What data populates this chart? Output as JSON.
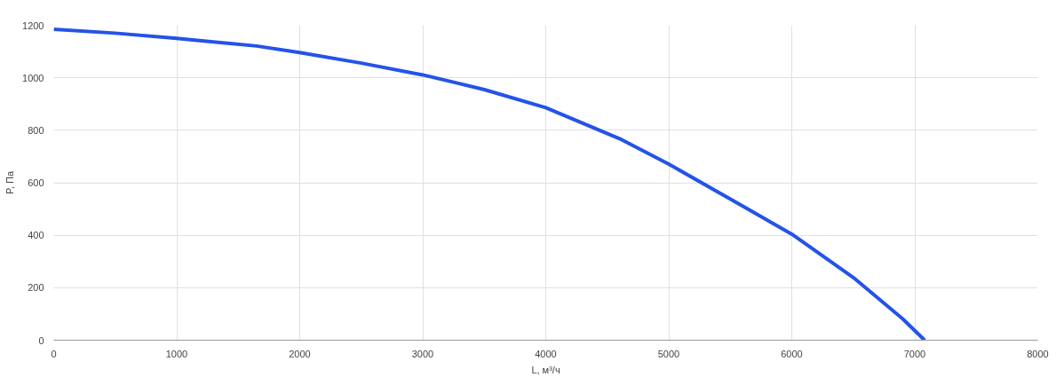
{
  "chart_data": {
    "type": "line",
    "xlabel": "L, м³/ч",
    "ylabel": "P, Па",
    "x": [
      0,
      500,
      1000,
      1650,
      2000,
      2500,
      3000,
      3500,
      4000,
      4600,
      5000,
      5600,
      6000,
      6500,
      6900,
      7080
    ],
    "series": [
      {
        "color": "#2453e8",
        "values": [
          1185,
          1170,
          1150,
          1121,
          1096,
          1056,
          1011,
          955,
          886,
          768,
          671,
          511,
          404,
          239,
          82,
          0
        ]
      }
    ],
    "xlim": [
      0,
      8000
    ],
    "xticks": [
      0,
      1000,
      2000,
      3000,
      4000,
      5000,
      6000,
      7000,
      8000
    ],
    "ylim": [
      0,
      1200
    ],
    "yticks": [
      0,
      200,
      400,
      600,
      800,
      1000,
      1200
    ],
    "grid": true,
    "marker": "none",
    "line_style": "solid"
  }
}
